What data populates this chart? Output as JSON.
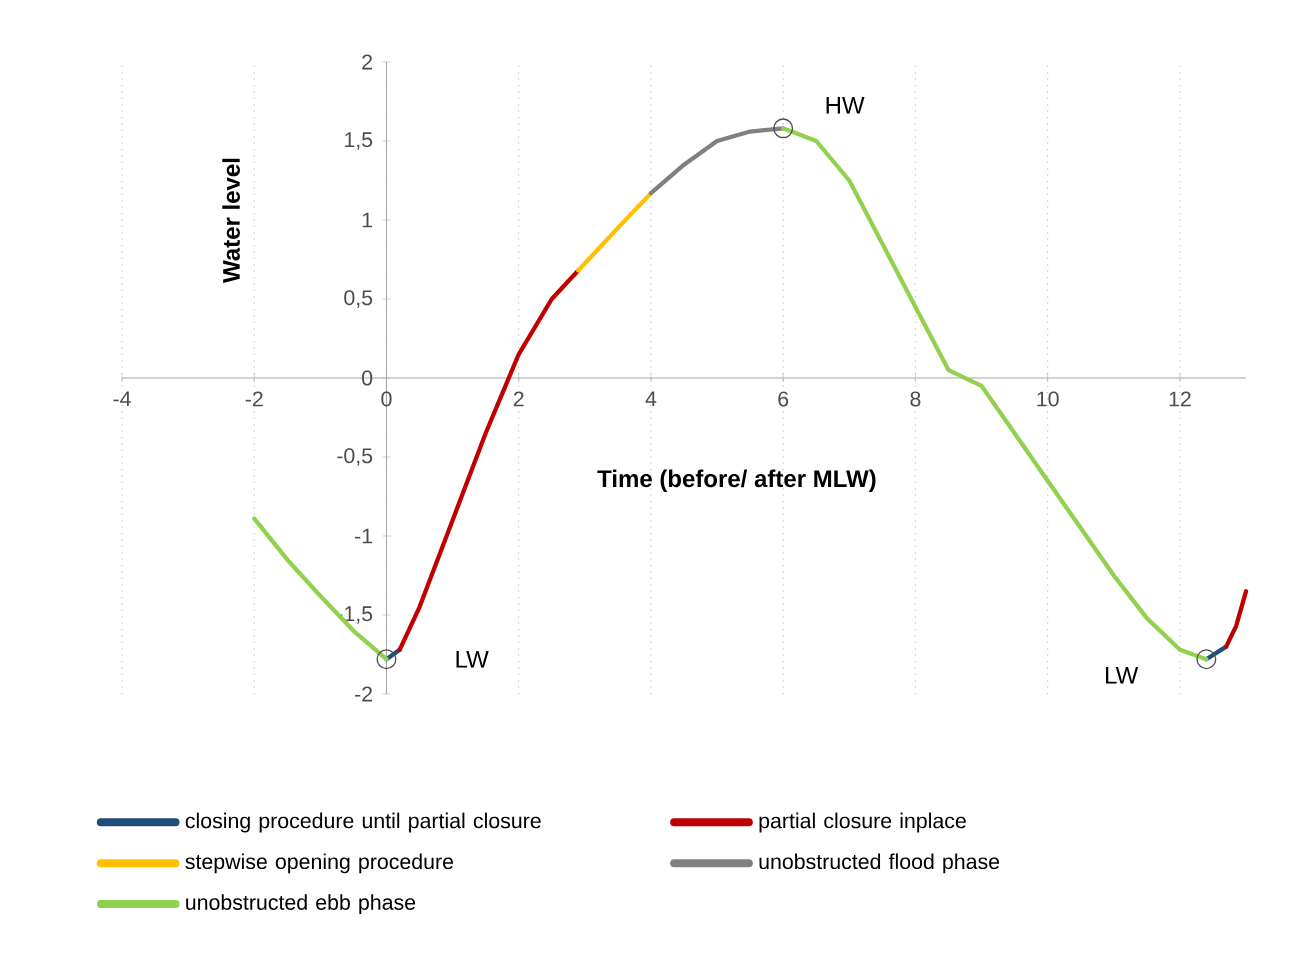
{
  "chart_data": {
    "type": "line",
    "xlabel": "Time (before/ after MLW)",
    "ylabel": "Water level",
    "xlim": [
      -4,
      13
    ],
    "ylim": [
      -2,
      2
    ],
    "xticks": [
      -4,
      -2,
      0,
      2,
      4,
      6,
      8,
      10,
      12
    ],
    "yticks": [
      -2,
      {
        "value": -1.5,
        "label": "-1,5"
      },
      -1,
      {
        "value": -0.5,
        "label": "-0,5"
      },
      0,
      {
        "value": 0.5,
        "label": "0,5"
      },
      1,
      {
        "value": 1.5,
        "label": "1,5"
      },
      2
    ],
    "grid": "x",
    "legend": "bottom",
    "series": [
      {
        "name": "closing procedure until partial closure",
        "color": "#1f4e79",
        "x": [
          0,
          0.2,
          12.3,
          12.4,
          12.7
        ],
        "values": [
          -1.78,
          -1.72,
          null,
          -1.78,
          -1.7
        ]
      },
      {
        "name": "partial closure inplace",
        "color": "#c00000",
        "x": [
          0.2,
          0.5,
          1,
          1.5,
          2,
          2.5,
          2.9,
          7,
          12.7,
          12.85,
          13
        ],
        "values": [
          -1.72,
          -1.45,
          -0.9,
          -0.35,
          0.15,
          0.5,
          0.68,
          null,
          -1.7,
          -1.57,
          -1.35
        ]
      },
      {
        "name": "stepwise opening procedure",
        "color": "#ffc000",
        "x": [
          2.9,
          3.5,
          4
        ],
        "values": [
          0.68,
          0.95,
          1.17
        ]
      },
      {
        "name": "unobstructed flood phase",
        "color": "#808080",
        "x": [
          4,
          4.5,
          5,
          5.5,
          6
        ],
        "values": [
          1.17,
          1.35,
          1.5,
          1.56,
          1.58
        ]
      },
      {
        "name": "unobstructed ebb phase",
        "color": "#92d050",
        "x": [
          -2,
          -1.5,
          -1,
          -0.5,
          0,
          3,
          6,
          6.5,
          7,
          7.5,
          8,
          8.5,
          9,
          9.5,
          10,
          10.5,
          11,
          11.5,
          12,
          12.4
        ],
        "values": [
          -0.89,
          -1.15,
          -1.38,
          -1.6,
          -1.78,
          null,
          1.58,
          1.5,
          1.25,
          0.85,
          0.45,
          0.05,
          -0.05,
          -0.35,
          -0.65,
          -0.95,
          -1.25,
          -1.52,
          -1.72,
          -1.78
        ]
      }
    ],
    "annotations": [
      {
        "text": "LW",
        "x": 0,
        "y": -1.78
      },
      {
        "text": "HW",
        "x": 6,
        "y": 1.58
      },
      {
        "text": "LW",
        "x": 12.4,
        "y": -1.78
      }
    ]
  }
}
